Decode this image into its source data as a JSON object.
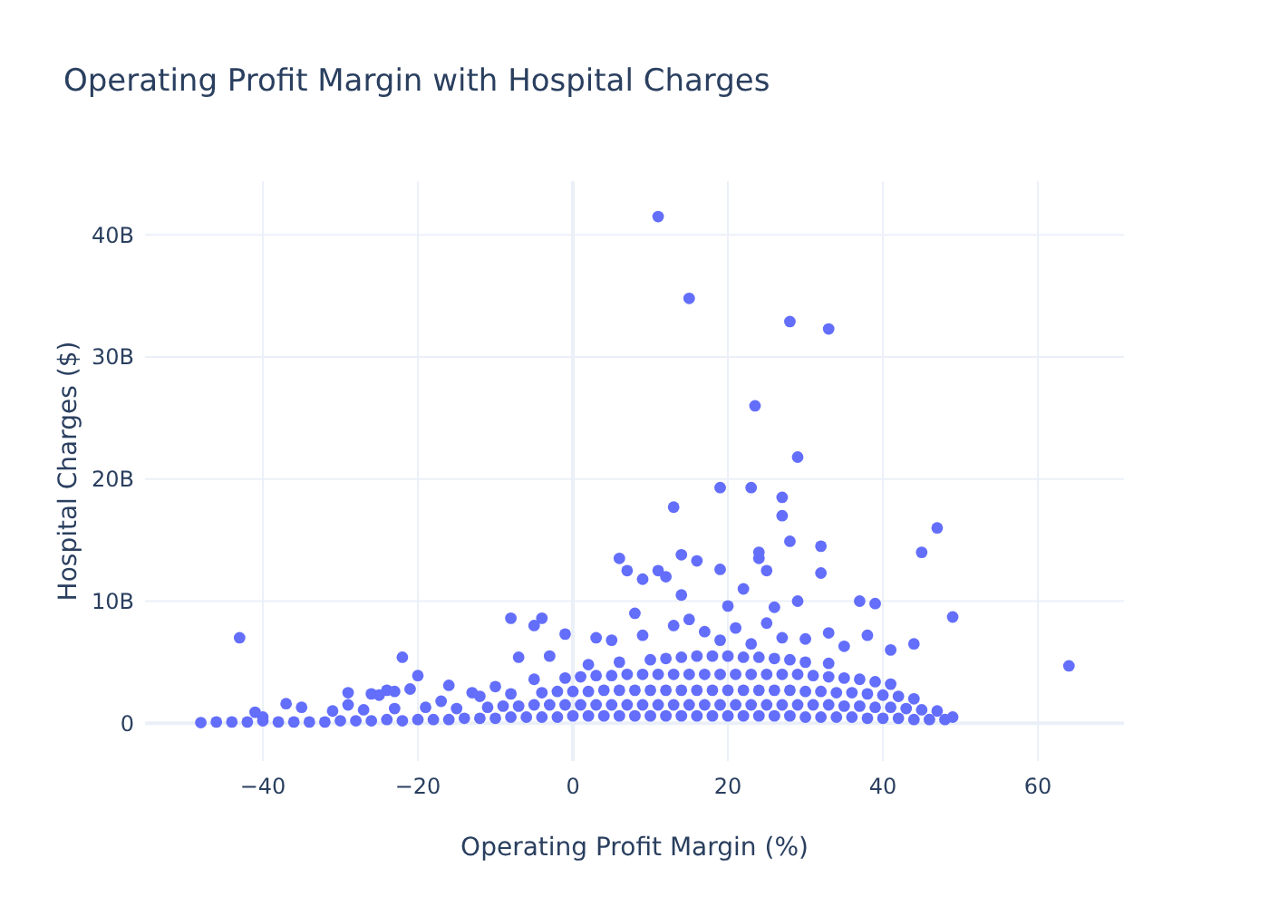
{
  "chart_data": {
    "type": "scatter",
    "title": "Operating Profit Margin with Hospital Charges",
    "xlabel": "Operating Profit Margin (%)",
    "ylabel": "Hospital Charges ($)",
    "xlim": [
      -55.2,
      71.1
    ],
    "ylim": [
      -3100000000.0,
      44400000000.0
    ],
    "xticks": [
      {
        "value": -40,
        "label": "−40"
      },
      {
        "value": -20,
        "label": "−20"
      },
      0,
      20,
      40,
      60
    ],
    "yticks": [
      0,
      {
        "value": 10000000000.0,
        "label": "10B"
      },
      {
        "value": 20000000000.0,
        "label": "20B"
      },
      {
        "value": 30000000000.0,
        "label": "30B"
      },
      {
        "value": 40000000000.0,
        "label": "40B"
      }
    ],
    "grid": true,
    "marker": "circle",
    "series": [
      {
        "color": "#636efa",
        "x": [
          -48,
          -46,
          -44,
          -42,
          -40,
          -38,
          -36,
          -34,
          -32,
          -30,
          -28,
          -26,
          -24,
          -22,
          -20,
          -18,
          -16,
          -14,
          -12,
          -10,
          -8,
          -6,
          -4,
          -2,
          0,
          2,
          4,
          6,
          8,
          10,
          12,
          14,
          16,
          18,
          20,
          22,
          24,
          26,
          28,
          30,
          32,
          34,
          36,
          38,
          40,
          42,
          44,
          46,
          48,
          49,
          -31,
          -27,
          -23,
          -19,
          -15,
          -11,
          -9,
          -7,
          -5,
          -3,
          -1,
          1,
          3,
          5,
          7,
          9,
          11,
          13,
          15,
          17,
          19,
          21,
          23,
          25,
          27,
          29,
          31,
          33,
          35,
          37,
          39,
          41,
          43,
          45,
          47,
          -12,
          -8,
          -4,
          -2,
          0,
          2,
          4,
          6,
          8,
          10,
          12,
          14,
          16,
          18,
          20,
          22,
          24,
          26,
          28,
          30,
          32,
          34,
          36,
          38,
          40,
          42,
          44,
          -5,
          -1,
          1,
          3,
          5,
          7,
          9,
          11,
          13,
          15,
          17,
          19,
          21,
          23,
          25,
          27,
          29,
          31,
          33,
          35,
          37,
          39,
          41,
          2,
          6,
          10,
          12,
          14,
          16,
          18,
          20,
          22,
          24,
          26,
          28,
          30,
          33,
          5,
          9,
          13,
          15,
          17,
          19,
          21,
          23,
          25,
          27,
          30,
          33,
          35,
          38,
          41,
          44,
          -3,
          -7,
          -1,
          8,
          20,
          26,
          22,
          14,
          3,
          -10,
          -13,
          -17,
          -26,
          -24,
          11,
          15,
          28,
          33,
          23.5,
          29,
          13,
          19,
          23,
          27,
          27,
          47,
          28,
          32,
          45,
          24,
          24,
          6,
          14,
          16,
          11,
          12,
          19,
          25,
          32,
          7,
          9,
          37,
          39,
          29,
          49,
          -43,
          -8,
          -4,
          -5,
          -22,
          64,
          -20,
          -16,
          -25,
          -23,
          -21,
          -29,
          -29,
          -37,
          -35,
          -40,
          -41
        ],
        "values": [
          50000000.0,
          100000000.0,
          100000000.0,
          100000000.0,
          200000000.0,
          100000000.0,
          100000000.0,
          100000000.0,
          100000000.0,
          200000000.0,
          200000000.0,
          200000000.0,
          300000000.0,
          200000000.0,
          300000000.0,
          300000000.0,
          300000000.0,
          400000000.0,
          400000000.0,
          400000000.0,
          500000000.0,
          500000000.0,
          500000000.0,
          500000000.0,
          600000000.0,
          600000000.0,
          600000000.0,
          600000000.0,
          600000000.0,
          600000000.0,
          600000000.0,
          600000000.0,
          600000000.0,
          600000000.0,
          600000000.0,
          600000000.0,
          600000000.0,
          600000000.0,
          600000000.0,
          500000000.0,
          500000000.0,
          500000000.0,
          500000000.0,
          400000000.0,
          400000000.0,
          400000000.0,
          300000000.0,
          300000000.0,
          300000000.0,
          500000000.0,
          1000000000.0,
          1100000000.0,
          1200000000.0,
          1300000000.0,
          1200000000.0,
          1300000000.0,
          1400000000.0,
          1400000000.0,
          1500000000.0,
          1500000000.0,
          1500000000.0,
          1500000000.0,
          1500000000.0,
          1500000000.0,
          1500000000.0,
          1500000000.0,
          1500000000.0,
          1500000000.0,
          1500000000.0,
          1500000000.0,
          1500000000.0,
          1500000000.0,
          1500000000.0,
          1500000000.0,
          1500000000.0,
          1500000000.0,
          1500000000.0,
          1500000000.0,
          1400000000.0,
          1400000000.0,
          1300000000.0,
          1300000000.0,
          1200000000.0,
          1100000000.0,
          1000000000.0,
          2200000000.0,
          2400000000.0,
          2500000000.0,
          2600000000.0,
          2600000000.0,
          2600000000.0,
          2700000000.0,
          2700000000.0,
          2700000000.0,
          2700000000.0,
          2700000000.0,
          2700000000.0,
          2700000000.0,
          2700000000.0,
          2700000000.0,
          2700000000.0,
          2700000000.0,
          2700000000.0,
          2700000000.0,
          2600000000.0,
          2600000000.0,
          2500000000.0,
          2500000000.0,
          2400000000.0,
          2300000000.0,
          2200000000.0,
          2000000000.0,
          3600000000.0,
          3700000000.0,
          3800000000.0,
          3900000000.0,
          3900000000.0,
          4000000000.0,
          4000000000.0,
          4000000000.0,
          4000000000.0,
          4000000000.0,
          4000000000.0,
          4000000000.0,
          4000000000.0,
          4000000000.0,
          4000000000.0,
          4000000000.0,
          4000000000.0,
          3900000000.0,
          3800000000.0,
          3700000000.0,
          3600000000.0,
          3400000000.0,
          3200000000.0,
          4800000000.0,
          5000000000.0,
          5200000000.0,
          5300000000.0,
          5400000000.0,
          5500000000.0,
          5500000000.0,
          5500000000.0,
          5400000000.0,
          5400000000.0,
          5300000000.0,
          5200000000.0,
          5000000000.0,
          4900000000.0,
          6800000000.0,
          7200000000.0,
          8000000000.0,
          8500000000.0,
          7500000000.0,
          6800000000.0,
          7800000000.0,
          6500000000.0,
          8200000000.0,
          7000000000.0,
          6900000000.0,
          7400000000.0,
          6300000000.0,
          7200000000.0,
          6000000000.0,
          6500000000.0,
          5500000000.0,
          5400000000.0,
          7300000000.0,
          9000000000.0,
          9600000000.0,
          9500000000.0,
          11000000000.0,
          10500000000.0,
          7000000000.0,
          3000000000.0,
          2500000000.0,
          1800000000.0,
          2400000000.0,
          2700000000.0,
          41500000000.0,
          34800000000.0,
          32900000000.0,
          32300000000.0,
          26000000000.0,
          21800000000.0,
          17700000000.0,
          19300000000.0,
          19300000000.0,
          18500000000.0,
          17000000000.0,
          16000000000.0,
          14900000000.0,
          14500000000.0,
          14000000000.0,
          14000000000.0,
          13500000000.0,
          13500000000.0,
          13800000000.0,
          13300000000.0,
          12500000000.0,
          12000000000.0,
          12600000000.0,
          12500000000.0,
          12300000000.0,
          12500000000.0,
          11800000000.0,
          10000000000.0,
          9800000000.0,
          10000000000.0,
          8700000000.0,
          7000000000.0,
          8600000000.0,
          8600000000.0,
          8000000000.0,
          5400000000.0,
          4700000000.0,
          3900000000.0,
          3100000000.0,
          2300000000.0,
          2600000000.0,
          2800000000.0,
          2500000000.0,
          1500000000.0,
          1600000000.0,
          1300000000.0,
          500000000.0,
          900000000.0
        ]
      }
    ]
  }
}
